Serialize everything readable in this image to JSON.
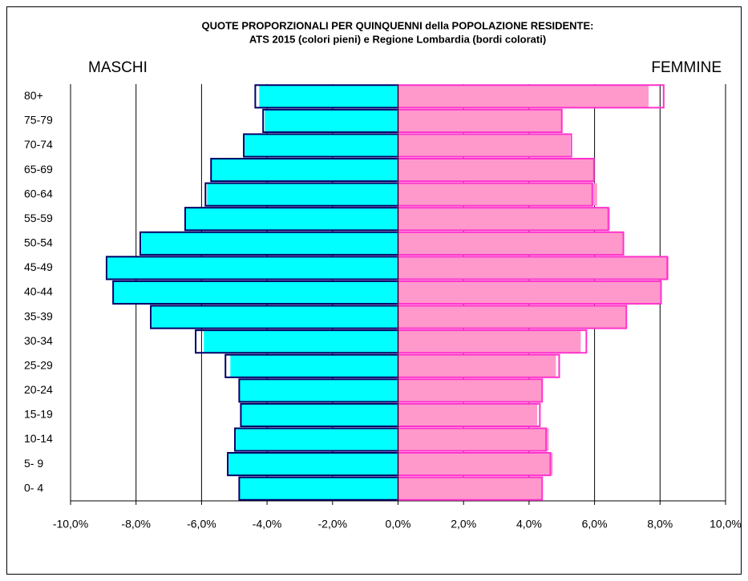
{
  "chart_data": {
    "type": "pyramid",
    "title": "QUOTE PROPORZIONALI  PER QUINQUENNI  della POPOLAZIONE RESIDENTE:",
    "subtitle": "ATS 2015 (colori pieni) e Regione Lombardia (bordi colorati)",
    "left_label": "MASCHI",
    "left_label_color": "#3366ff",
    "right_label": "FEMMINE",
    "right_label_color": "#ff33cc",
    "categories": [
      "0- 4",
      "5- 9",
      "10-14",
      "15-19",
      "20-24",
      "25-29",
      "30-34",
      "35-39",
      "40-44",
      "45-49",
      "50-54",
      "55-59",
      "60-64",
      "65-69",
      "70-74",
      "75-79",
      "80+"
    ],
    "series": [
      {
        "style": "fill",
        "color": "#00ffff",
        "values": [
          -4.83,
          -5.17,
          -4.95,
          -4.78,
          -4.83,
          -5.12,
          -5.93,
          -7.52,
          -8.68,
          -8.87,
          -7.84,
          -6.5,
          -5.83,
          -5.69,
          -4.68,
          -4.07,
          -4.24
        ]
      },
      {
        "style": "outline",
        "color": "#000066",
        "values": [
          -4.85,
          -5.2,
          -4.98,
          -4.8,
          -4.85,
          -5.27,
          -6.18,
          -7.55,
          -8.7,
          -8.9,
          -7.87,
          -6.5,
          -5.88,
          -5.71,
          -4.71,
          -4.12,
          -4.36
        ]
      },
      {
        "style": "fill",
        "color": "#ff99cc",
        "values": [
          4.38,
          4.72,
          4.6,
          4.25,
          4.38,
          4.82,
          5.58,
          6.97,
          8.03,
          8.26,
          6.88,
          6.47,
          6.08,
          5.96,
          5.25,
          5.0,
          7.65
        ]
      },
      {
        "style": "outline",
        "color": "#ff33cc",
        "values": [
          4.4,
          4.65,
          4.52,
          4.33,
          4.4,
          4.92,
          5.75,
          6.97,
          8.03,
          8.22,
          6.88,
          6.42,
          5.93,
          5.98,
          5.29,
          5.0,
          8.11
        ]
      }
    ],
    "xlim": [
      -10,
      10
    ],
    "xticks": [
      {
        "value": -10,
        "label": "-10,0%"
      },
      {
        "value": -8,
        "label": "-8,0%"
      },
      {
        "value": -6,
        "label": "-6,0%"
      },
      {
        "value": -4,
        "label": "-4,0%"
      },
      {
        "value": -2,
        "label": "-2,0%"
      },
      {
        "value": 0,
        "label": "0,0%"
      },
      {
        "value": 2,
        "label": "2,0%"
      },
      {
        "value": 4,
        "label": "4,0%"
      },
      {
        "value": 6,
        "label": "6,0%"
      },
      {
        "value": 8,
        "label": "8,0%"
      },
      {
        "value": 10,
        "label": "10,0%"
      }
    ],
    "grid": true
  }
}
